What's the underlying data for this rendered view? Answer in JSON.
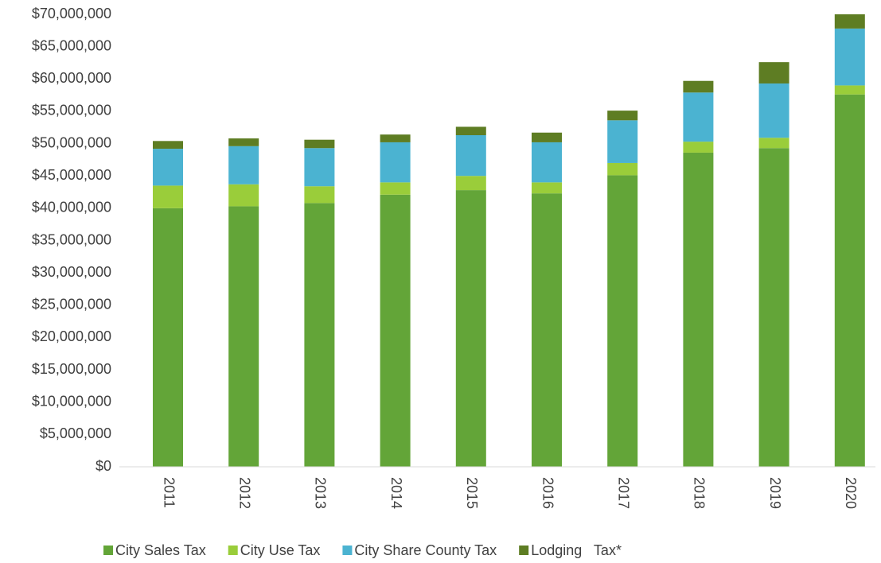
{
  "chart_data": {
    "type": "stacked_bar",
    "categories": [
      "2011",
      "2012",
      "2013",
      "2014",
      "2015",
      "2016",
      "2017",
      "2018",
      "2019",
      "2020"
    ],
    "series": [
      {
        "name": "City Sales Tax",
        "color": "#63a538",
        "values": [
          40000000,
          40300000,
          40800000,
          42100000,
          42800000,
          42300000,
          45100000,
          48600000,
          49300000,
          57600000
        ]
      },
      {
        "name": "City Use Tax",
        "color": "#9acd3a",
        "values": [
          3500000,
          3400000,
          2600000,
          1900000,
          2200000,
          1700000,
          1900000,
          1700000,
          1600000,
          1400000
        ]
      },
      {
        "name": "City Share County Tax",
        "color": "#4bb3d1",
        "values": [
          5700000,
          5900000,
          5900000,
          6200000,
          6300000,
          6200000,
          6600000,
          7600000,
          8400000,
          8800000
        ]
      },
      {
        "name": "Lodging   Tax*",
        "color": "#5e7d23",
        "values": [
          1200000,
          1200000,
          1300000,
          1200000,
          1300000,
          1500000,
          1500000,
          1800000,
          3300000,
          2200000
        ]
      }
    ],
    "ylim": [
      0,
      70000000
    ],
    "yticks": [
      {
        "value": 0,
        "label": "$0"
      },
      {
        "value": 5000000,
        "label": "$5,000,000"
      },
      {
        "value": 10000000,
        "label": "$10,000,000"
      },
      {
        "value": 15000000,
        "label": "$15,000,000"
      },
      {
        "value": 20000000,
        "label": "$20,000,000"
      },
      {
        "value": 25000000,
        "label": "$25,000,000"
      },
      {
        "value": 30000000,
        "label": "$30,000,000"
      },
      {
        "value": 35000000,
        "label": "$35,000,000"
      },
      {
        "value": 40000000,
        "label": "$40,000,000"
      },
      {
        "value": 45000000,
        "label": "$45,000,000"
      },
      {
        "value": 50000000,
        "label": "$50,000,000"
      },
      {
        "value": 55000000,
        "label": "$55,000,000"
      },
      {
        "value": 60000000,
        "label": "$60,000,000"
      },
      {
        "value": 65000000,
        "label": "$65,000,000"
      },
      {
        "value": 70000000,
        "label": "$70,000,000"
      }
    ],
    "grid": false,
    "legend": "bottom"
  }
}
